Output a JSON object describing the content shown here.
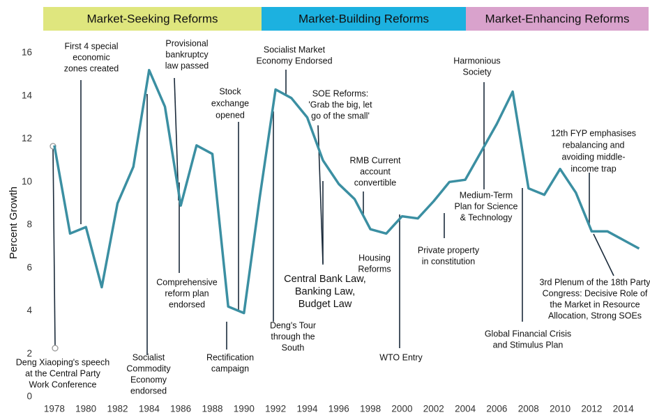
{
  "chart_data": {
    "type": "line",
    "y_label": "Percent Growth",
    "x": [
      1978,
      1979,
      1980,
      1981,
      1982,
      1983,
      1984,
      1985,
      1986,
      1987,
      1988,
      1989,
      1990,
      1991,
      1992,
      1993,
      1994,
      1995,
      1996,
      1997,
      1998,
      1999,
      2000,
      2001,
      2002,
      2003,
      2004,
      2005,
      2006,
      2007,
      2008,
      2009,
      2010,
      2011,
      2012,
      2013,
      2014,
      2015
    ],
    "values": [
      11.7,
      7.6,
      7.9,
      5.1,
      9.0,
      10.7,
      15.2,
      13.5,
      8.9,
      11.7,
      11.3,
      4.2,
      3.9,
      9.3,
      14.3,
      13.9,
      13.0,
      11.0,
      9.9,
      9.2,
      7.8,
      7.6,
      8.4,
      8.3,
      9.1,
      10.0,
      10.1,
      11.4,
      12.7,
      14.2,
      9.7,
      9.4,
      10.6,
      9.5,
      7.7,
      7.7,
      7.3,
      6.9
    ],
    "color": "#3b8fa2",
    "xlim": [
      1977.3,
      2015.6
    ],
    "xticks": [
      1978,
      1980,
      1982,
      1984,
      1986,
      1988,
      1990,
      1992,
      1994,
      1996,
      1998,
      2000,
      2002,
      2004,
      2006,
      2008,
      2010,
      2012,
      2014
    ],
    "ylim": [
      0,
      16
    ],
    "yticks": [
      0,
      2,
      4,
      6,
      8,
      10,
      12,
      14,
      16
    ],
    "phases": [
      {
        "label": "Market-Seeking Reforms",
        "color": "#dfe67e"
      },
      {
        "label": "Market-Building Reforms",
        "color": "#1cb1e0"
      },
      {
        "label": "Market-Enhancing Reforms",
        "color": "#d9a2cc"
      }
    ],
    "annotations": [
      {
        "lines": [
          "First 4 special",
          "economic",
          "zones created"
        ]
      },
      {
        "lines": [
          "Provisional",
          "bankruptcy",
          "law passed"
        ]
      },
      {
        "lines": [
          "Stock",
          "exchange",
          "opened"
        ]
      },
      {
        "lines": [
          "Socialist Market",
          "Economy Endorsed"
        ]
      },
      {
        "lines": [
          "SOE Reforms:",
          "'Grab the big, let",
          "go of the small'"
        ]
      },
      {
        "lines": [
          "RMB Current",
          "account",
          "convertible"
        ]
      },
      {
        "lines": [
          "Harmonious",
          "Society"
        ]
      },
      {
        "lines": [
          "12th FYP emphasises",
          "rebalancing and",
          "avoiding middle-",
          "income trap"
        ]
      },
      {
        "lines": [
          "Deng Xiaoping's speech",
          "at the Central Party",
          "Work Conference"
        ]
      },
      {
        "lines": [
          "Socialist",
          "Commodity",
          "Economy",
          "endorsed"
        ]
      },
      {
        "lines": [
          "Comprehensive",
          "reform plan",
          "endorsed"
        ]
      },
      {
        "lines": [
          "Rectification",
          "campaign"
        ]
      },
      {
        "lines": [
          "Deng's Tour",
          "through the",
          "South"
        ]
      },
      {
        "lines": [
          "Central Bank Law,",
          "Banking Law,",
          "Budget Law"
        ]
      },
      {
        "lines": [
          "Housing",
          "Reforms"
        ]
      },
      {
        "lines": [
          "WTO Entry"
        ]
      },
      {
        "lines": [
          "Private property",
          "in constitution"
        ]
      },
      {
        "lines": [
          "Global Financial Crisis",
          "and Stimulus Plan"
        ]
      },
      {
        "lines": [
          "3rd Plenum of the 18th Party",
          "Congress: Decisive Role of",
          "the Market in Resource",
          "Allocation, Strong SOEs"
        ]
      },
      {
        "lines": [
          "Medium-Term",
          "Plan for Science",
          "& Technology"
        ]
      }
    ]
  }
}
